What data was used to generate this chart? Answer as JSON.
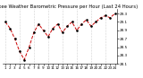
{
  "title": "Milwaukee Weather Barometric Pressure per Hour (Last 24 Hours)",
  "hours": [
    1,
    2,
    3,
    4,
    5,
    6,
    7,
    8,
    9,
    10,
    11,
    12,
    13,
    14,
    15,
    16,
    17,
    18,
    19,
    20,
    21,
    22,
    23,
    24
  ],
  "pressure": [
    29.1,
    28.95,
    28.7,
    28.4,
    28.2,
    28.5,
    28.85,
    29.05,
    28.9,
    28.75,
    28.95,
    29.05,
    28.85,
    29.0,
    29.1,
    28.9,
    29.05,
    29.15,
    29.0,
    29.1,
    29.2,
    29.25,
    29.2,
    29.3
  ],
  "ymin": 28.1,
  "ymax": 29.4,
  "yticks": [
    28.1,
    28.3,
    28.5,
    28.7,
    28.9,
    29.1,
    29.3
  ],
  "ytick_labels": [
    "28.1",
    "28.3",
    "28.5",
    "28.7",
    "28.9",
    "29.1",
    "29.3"
  ],
  "vgrid_positions": [
    1,
    4,
    7,
    10,
    13,
    16,
    19,
    22
  ],
  "line_color": "#cc0000",
  "marker_color": "#000000",
  "bg_color": "#ffffff",
  "grid_color": "#aaaaaa",
  "title_fontsize": 3.8,
  "tick_fontsize": 3.0,
  "figwidth": 1.6,
  "figheight": 0.87,
  "dpi": 100
}
